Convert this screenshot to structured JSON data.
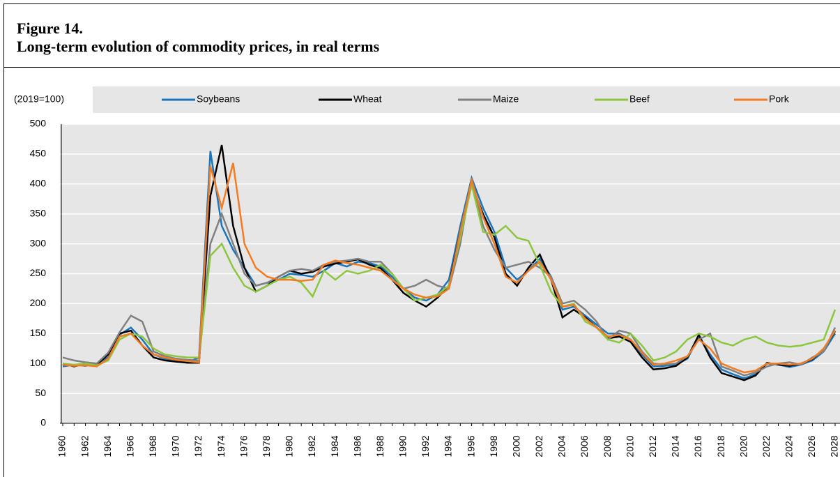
{
  "header": {
    "figure": "Figure 14.",
    "title": "Long-term evolution of commodity prices, in real terms"
  },
  "chart_data": {
    "type": "line",
    "unit_label": "(2019=100)",
    "categories": [
      "1960",
      null,
      "1962",
      null,
      "1964",
      null,
      "1966",
      null,
      "1968",
      null,
      "1970",
      null,
      "1972",
      null,
      "1974",
      null,
      "1976",
      null,
      "1978",
      null,
      "1980",
      null,
      "1982",
      null,
      "1984",
      null,
      "1986",
      null,
      "1988",
      null,
      "1990",
      null,
      "1992",
      null,
      "1994",
      null,
      "1996",
      null,
      "1998",
      null,
      "2000",
      null,
      "2002",
      null,
      "2004",
      null,
      "2006",
      null,
      "2008",
      null,
      "2010",
      null,
      "2012",
      null,
      "2014",
      null,
      "2016",
      null,
      "2018",
      null,
      "2020",
      null,
      "2022",
      null,
      "2024",
      null,
      "2026",
      null,
      "2028"
    ],
    "series": [
      {
        "name": "Soybeans",
        "color": "#1a75bc",
        "values": [
          95,
          98,
          96,
          100,
          110,
          148,
          160,
          140,
          115,
          108,
          105,
          102,
          110,
          455,
          330,
          290,
          260,
          230,
          235,
          240,
          250,
          248,
          245,
          255,
          268,
          262,
          270,
          268,
          262,
          245,
          225,
          210,
          205,
          215,
          240,
          330,
          410,
          360,
          320,
          260,
          240,
          255,
          275,
          245,
          190,
          195,
          180,
          165,
          150,
          150,
          140,
          115,
          95,
          96,
          98,
          108,
          145,
          115,
          90,
          82,
          75,
          82,
          100,
          98,
          94,
          98,
          105,
          120,
          150
        ]
      },
      {
        "name": "Wheat",
        "color": "#000000",
        "values": [
          100,
          95,
          100,
          98,
          115,
          150,
          155,
          130,
          110,
          105,
          103,
          101,
          101,
          380,
          465,
          330,
          260,
          220,
          230,
          245,
          255,
          250,
          253,
          262,
          267,
          270,
          274,
          265,
          259,
          240,
          218,
          205,
          195,
          210,
          230,
          320,
          399,
          350,
          311,
          250,
          230,
          260,
          282,
          240,
          177,
          190,
          177,
          160,
          142,
          145,
          136,
          110,
          90,
          92,
          96,
          110,
          148,
          110,
          84,
          78,
          72,
          80,
          101,
          98,
          96,
          100,
          107,
          125,
          154
        ]
      },
      {
        "name": "Maize",
        "color": "#808080",
        "values": [
          110,
          105,
          102,
          100,
          118,
          152,
          180,
          170,
          120,
          112,
          108,
          106,
          105,
          300,
          350,
          300,
          250,
          230,
          235,
          245,
          255,
          258,
          255,
          265,
          270,
          272,
          275,
          270,
          270,
          250,
          225,
          230,
          240,
          230,
          225,
          300,
          410,
          330,
          290,
          260,
          265,
          270,
          260,
          245,
          200,
          205,
          190,
          170,
          140,
          155,
          150,
          120,
          100,
          98,
          100,
          112,
          140,
          150,
          95,
          88,
          80,
          85,
          95,
          100,
          102,
          98,
          110,
          120,
          160
        ]
      },
      {
        "name": "Beef",
        "color": "#8cc63f",
        "values": [
          100,
          98,
          100,
          97,
          105,
          140,
          150,
          145,
          125,
          115,
          112,
          110,
          110,
          280,
          300,
          260,
          230,
          220,
          230,
          240,
          245,
          235,
          212,
          255,
          240,
          255,
          250,
          255,
          265,
          250,
          225,
          205,
          210,
          215,
          230,
          310,
          399,
          320,
          315,
          330,
          310,
          305,
          265,
          220,
          195,
          200,
          170,
          160,
          140,
          135,
          150,
          130,
          105,
          110,
          120,
          140,
          150,
          145,
          135,
          130,
          140,
          145,
          135,
          130,
          128,
          130,
          135,
          140,
          190
        ]
      },
      {
        "name": "Pork",
        "color": "#f47c20",
        "values": [
          98,
          96,
          97,
          95,
          108,
          145,
          150,
          130,
          115,
          110,
          106,
          104,
          102,
          430,
          360,
          435,
          300,
          260,
          245,
          240,
          240,
          238,
          240,
          265,
          272,
          268,
          265,
          260,
          255,
          240,
          225,
          215,
          210,
          212,
          225,
          320,
          405,
          345,
          300,
          245,
          235,
          255,
          270,
          240,
          195,
          198,
          175,
          160,
          145,
          148,
          140,
          118,
          98,
          100,
          105,
          112,
          140,
          125,
          100,
          92,
          85,
          88,
          100,
          100,
          98,
          100,
          108,
          125,
          155
        ]
      }
    ],
    "ylim": [
      0,
      500
    ],
    "yticks": [
      0,
      50,
      100,
      150,
      200,
      250,
      300,
      350,
      400,
      450,
      500
    ],
    "grid": true
  }
}
